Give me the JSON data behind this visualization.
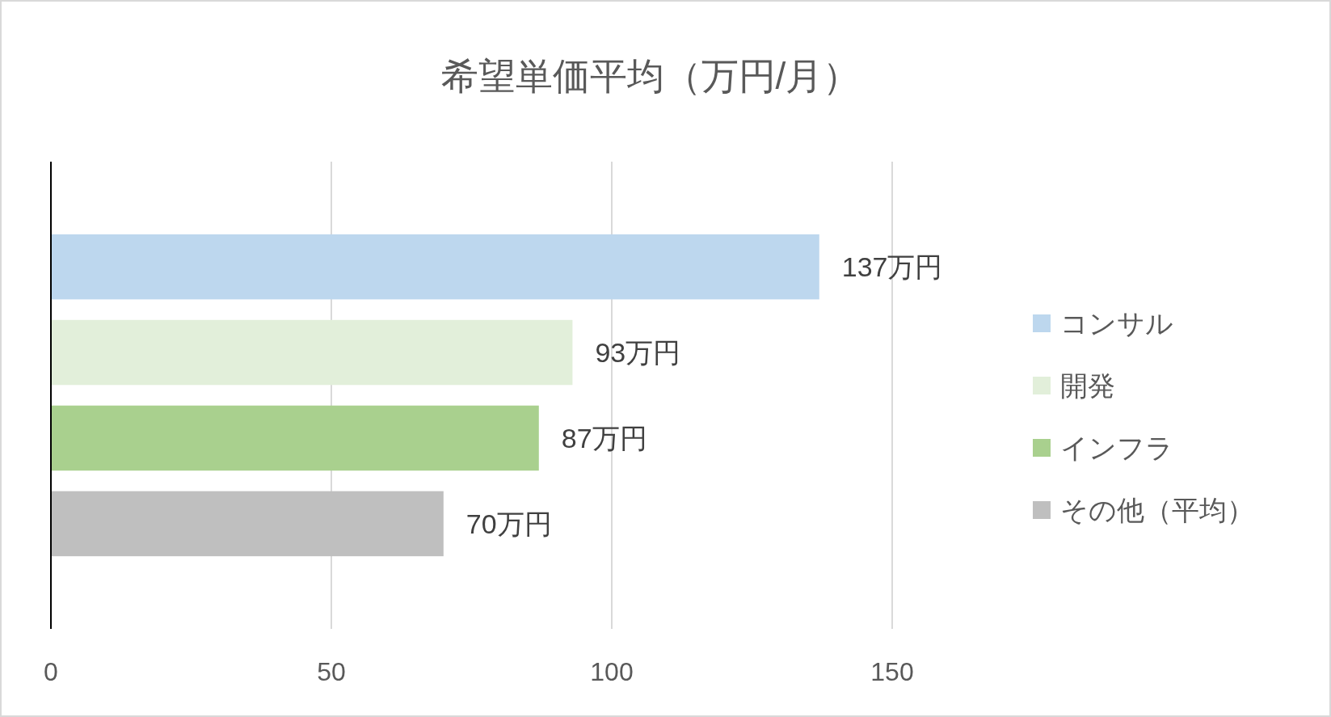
{
  "chart_data": {
    "type": "bar",
    "orientation": "horizontal",
    "title": "希望単価平均（万円/月）",
    "categories": [
      null
    ],
    "series": [
      {
        "name": "コンサル",
        "color": "#bdd7ee",
        "values": [
          137
        ],
        "value_labels": [
          "137万円"
        ]
      },
      {
        "name": "開発",
        "color": "#e2efda",
        "values": [
          93
        ],
        "value_labels": [
          "93万円"
        ]
      },
      {
        "name": "インフラ",
        "color": "#a9d08e",
        "values": [
          87
        ],
        "value_labels": [
          "87万円"
        ]
      },
      {
        "name": "その他（平均）",
        "color": "#bfbfbf",
        "values": [
          70
        ],
        "value_labels": [
          "70万円"
        ]
      }
    ],
    "xlim": [
      0,
      150
    ],
    "xticks": [
      0,
      50,
      100,
      150
    ],
    "grid": "x",
    "legend": "right"
  }
}
